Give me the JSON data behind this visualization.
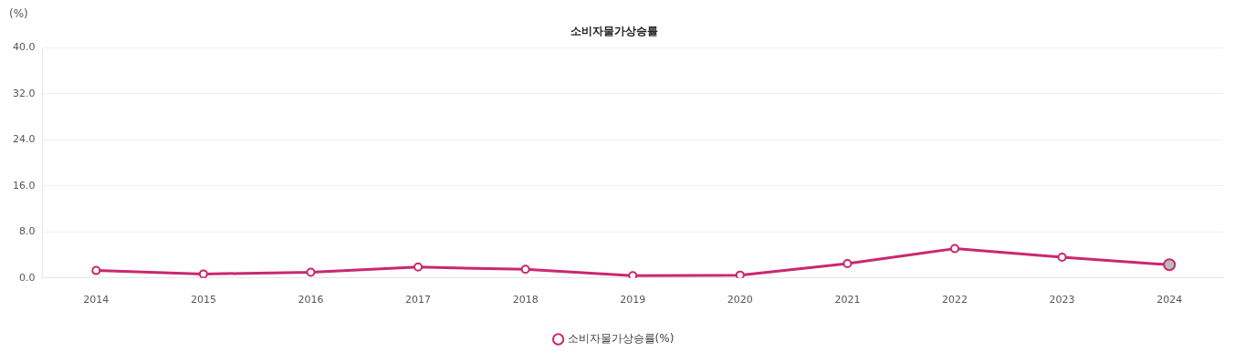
{
  "chart_data": {
    "type": "line",
    "title": "소비자물가상승률",
    "ylabel": "(%)",
    "categories": [
      "2014",
      "2015",
      "2016",
      "2017",
      "2018",
      "2019",
      "2020",
      "2021",
      "2022",
      "2023",
      "2024"
    ],
    "series": [
      {
        "name": "소비자물가상승률(%)",
        "color": "#c9286f",
        "values": [
          1.3,
          0.7,
          1.0,
          1.9,
          1.5,
          0.4,
          0.5,
          2.5,
          5.1,
          3.6,
          2.3
        ]
      }
    ],
    "ylim": [
      0,
      40
    ],
    "yticks": [
      {
        "value": 0,
        "label": "0.0"
      },
      {
        "value": 8,
        "label": "8.0"
      },
      {
        "value": 16,
        "label": "16.0"
      },
      {
        "value": 24,
        "label": "24.0"
      },
      {
        "value": 32,
        "label": "32.0"
      },
      {
        "value": 40,
        "label": "40.0"
      }
    ],
    "grid": "y",
    "legend": "bottom",
    "marker": "circle",
    "line_style": "solid"
  }
}
